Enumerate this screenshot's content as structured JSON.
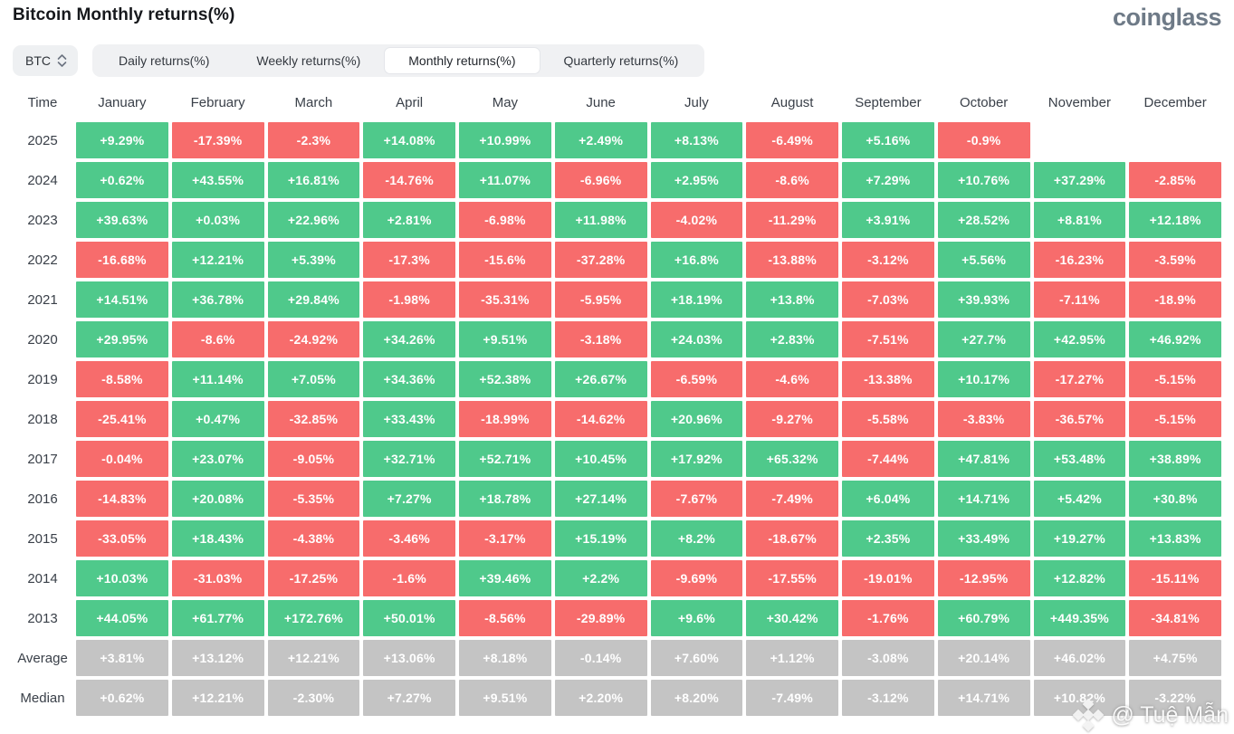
{
  "page": {
    "title": "Bitcoin Monthly returns(%)",
    "logo": "coinglass"
  },
  "controls": {
    "symbol": "BTC",
    "symbol_icon": "updown-chevron",
    "tabs": [
      {
        "label": "Daily returns(%)",
        "active": false
      },
      {
        "label": "Weekly returns(%)",
        "active": false
      },
      {
        "label": "Monthly returns(%)",
        "active": true
      },
      {
        "label": "Quarterly returns(%)",
        "active": false
      }
    ]
  },
  "colors": {
    "positive": "#4fc98b",
    "negative": "#f76c6c",
    "summary": "#c4c4c4"
  },
  "table": {
    "columns": [
      "Time",
      "January",
      "February",
      "March",
      "April",
      "May",
      "June",
      "July",
      "August",
      "September",
      "October",
      "November",
      "December"
    ],
    "rows": [
      {
        "label": "2025",
        "type": "year",
        "values": [
          "+9.29%",
          "-17.39%",
          "-2.3%",
          "+14.08%",
          "+10.99%",
          "+2.49%",
          "+8.13%",
          "-6.49%",
          "+5.16%",
          "-0.9%",
          "",
          ""
        ]
      },
      {
        "label": "2024",
        "type": "year",
        "values": [
          "+0.62%",
          "+43.55%",
          "+16.81%",
          "-14.76%",
          "+11.07%",
          "-6.96%",
          "+2.95%",
          "-8.6%",
          "+7.29%",
          "+10.76%",
          "+37.29%",
          "-2.85%"
        ]
      },
      {
        "label": "2023",
        "type": "year",
        "values": [
          "+39.63%",
          "+0.03%",
          "+22.96%",
          "+2.81%",
          "-6.98%",
          "+11.98%",
          "-4.02%",
          "-11.29%",
          "+3.91%",
          "+28.52%",
          "+8.81%",
          "+12.18%"
        ]
      },
      {
        "label": "2022",
        "type": "year",
        "values": [
          "-16.68%",
          "+12.21%",
          "+5.39%",
          "-17.3%",
          "-15.6%",
          "-37.28%",
          "+16.8%",
          "-13.88%",
          "-3.12%",
          "+5.56%",
          "-16.23%",
          "-3.59%"
        ]
      },
      {
        "label": "2021",
        "type": "year",
        "values": [
          "+14.51%",
          "+36.78%",
          "+29.84%",
          "-1.98%",
          "-35.31%",
          "-5.95%",
          "+18.19%",
          "+13.8%",
          "-7.03%",
          "+39.93%",
          "-7.11%",
          "-18.9%"
        ]
      },
      {
        "label": "2020",
        "type": "year",
        "values": [
          "+29.95%",
          "-8.6%",
          "-24.92%",
          "+34.26%",
          "+9.51%",
          "-3.18%",
          "+24.03%",
          "+2.83%",
          "-7.51%",
          "+27.7%",
          "+42.95%",
          "+46.92%"
        ]
      },
      {
        "label": "2019",
        "type": "year",
        "values": [
          "-8.58%",
          "+11.14%",
          "+7.05%",
          "+34.36%",
          "+52.38%",
          "+26.67%",
          "-6.59%",
          "-4.6%",
          "-13.38%",
          "+10.17%",
          "-17.27%",
          "-5.15%"
        ]
      },
      {
        "label": "2018",
        "type": "year",
        "values": [
          "-25.41%",
          "+0.47%",
          "-32.85%",
          "+33.43%",
          "-18.99%",
          "-14.62%",
          "+20.96%",
          "-9.27%",
          "-5.58%",
          "-3.83%",
          "-36.57%",
          "-5.15%"
        ]
      },
      {
        "label": "2017",
        "type": "year",
        "values": [
          "-0.04%",
          "+23.07%",
          "-9.05%",
          "+32.71%",
          "+52.71%",
          "+10.45%",
          "+17.92%",
          "+65.32%",
          "-7.44%",
          "+47.81%",
          "+53.48%",
          "+38.89%"
        ]
      },
      {
        "label": "2016",
        "type": "year",
        "values": [
          "-14.83%",
          "+20.08%",
          "-5.35%",
          "+7.27%",
          "+18.78%",
          "+27.14%",
          "-7.67%",
          "-7.49%",
          "+6.04%",
          "+14.71%",
          "+5.42%",
          "+30.8%"
        ]
      },
      {
        "label": "2015",
        "type": "year",
        "values": [
          "-33.05%",
          "+18.43%",
          "-4.38%",
          "-3.46%",
          "-3.17%",
          "+15.19%",
          "+8.2%",
          "-18.67%",
          "+2.35%",
          "+33.49%",
          "+19.27%",
          "+13.83%"
        ]
      },
      {
        "label": "2014",
        "type": "year",
        "values": [
          "+10.03%",
          "-31.03%",
          "-17.25%",
          "-1.6%",
          "+39.46%",
          "+2.2%",
          "-9.69%",
          "-17.55%",
          "-19.01%",
          "-12.95%",
          "+12.82%",
          "-15.11%"
        ]
      },
      {
        "label": "2013",
        "type": "year",
        "values": [
          "+44.05%",
          "+61.77%",
          "+172.76%",
          "+50.01%",
          "-8.56%",
          "-29.89%",
          "+9.6%",
          "+30.42%",
          "-1.76%",
          "+60.79%",
          "+449.35%",
          "-34.81%"
        ]
      },
      {
        "label": "Average",
        "type": "summary",
        "values": [
          "+3.81%",
          "+13.12%",
          "+12.21%",
          "+13.06%",
          "+8.18%",
          "-0.14%",
          "+7.60%",
          "+1.12%",
          "-3.08%",
          "+20.14%",
          "+46.02%",
          "+4.75%"
        ]
      },
      {
        "label": "Median",
        "type": "summary",
        "values": [
          "+0.62%",
          "+12.21%",
          "-2.30%",
          "+7.27%",
          "+9.51%",
          "+2.20%",
          "+8.20%",
          "-7.49%",
          "-3.12%",
          "+14.71%",
          "+10.82%",
          "-3.22%"
        ]
      }
    ]
  },
  "watermark": {
    "text": "@ Tuệ Mẫn",
    "icon": "binance-diamond-icon"
  }
}
